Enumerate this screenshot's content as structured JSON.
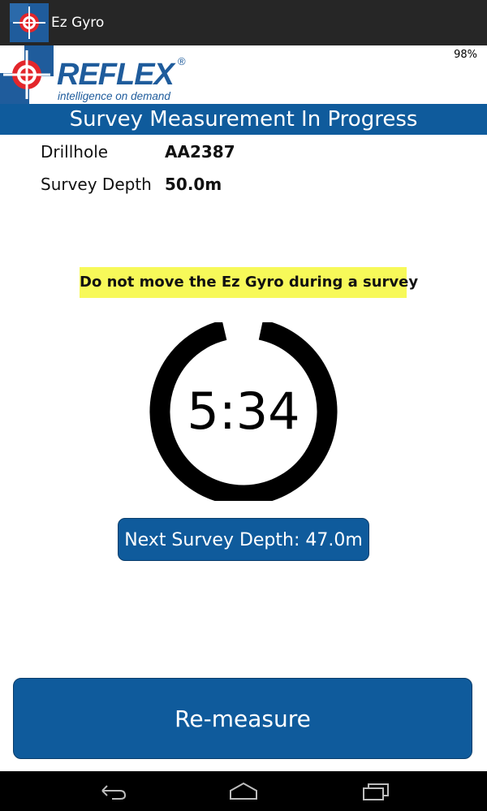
{
  "app": {
    "title": "Ez Gyro",
    "icon": "reflex-crosshair-icon"
  },
  "status": {
    "battery": "98%"
  },
  "logo": {
    "brand": "REFLEX",
    "registered": "®",
    "tagline": "intelligence on demand",
    "brand_color": "#1f5c9c"
  },
  "header": {
    "title": "Survey Measurement In Progress",
    "band_color": "#0f5b9c"
  },
  "info": {
    "drillhole_label": "Drillhole",
    "drillhole_value": "AA2387",
    "depth_label": "Survey Depth",
    "depth_value": "50.0m"
  },
  "warning": {
    "text": "Do not move the Ez Gyro during a survey",
    "color": "#f7f959"
  },
  "timer": {
    "value": "5:34",
    "progress_fraction": 0.93
  },
  "buttons": {
    "next_survey_label": "Next Survey Depth: 47.0m",
    "remeasure_label": "Re-measure",
    "accent": "#0f5b9c"
  },
  "nav": {
    "back_icon": "back-icon",
    "home_icon": "home-icon",
    "recents_icon": "recents-icon"
  }
}
